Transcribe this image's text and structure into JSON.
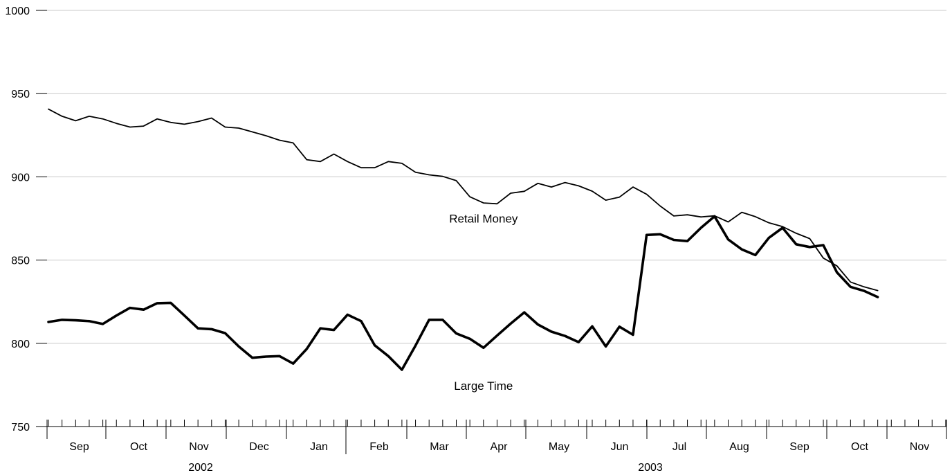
{
  "chart_data": {
    "type": "line",
    "title": "",
    "xlabel": "",
    "ylabel": "",
    "ylim": [
      750,
      1000
    ],
    "yticks": [
      "750",
      "800",
      "850",
      "900",
      "950",
      "1000"
    ],
    "grid": true,
    "x_start": "2002-08-19",
    "x_step_days": 7,
    "months": [
      {
        "label": "Sep",
        "year": 2002
      },
      {
        "label": "Oct",
        "year": 2002
      },
      {
        "label": "Nov",
        "year": 2002
      },
      {
        "label": "Dec",
        "year": 2002
      },
      {
        "label": "Jan",
        "year": 2003
      },
      {
        "label": "Feb",
        "year": 2003
      },
      {
        "label": "Mar",
        "year": 2003
      },
      {
        "label": "Apr",
        "year": 2003
      },
      {
        "label": "May",
        "year": 2003
      },
      {
        "label": "Jun",
        "year": 2003
      },
      {
        "label": "Jul",
        "year": 2003
      },
      {
        "label": "Aug",
        "year": 2003
      },
      {
        "label": "Sep",
        "year": 2003
      },
      {
        "label": "Oct",
        "year": 2003
      },
      {
        "label": "Nov",
        "year": 2003
      }
    ],
    "years": [
      {
        "label": "2002"
      },
      {
        "label": "2003"
      }
    ],
    "series": [
      {
        "name": "Retail Money",
        "values": [
          940.7,
          936.4,
          933.7,
          936.4,
          934.8,
          932.1,
          929.9,
          930.5,
          934.8,
          932.7,
          931.6,
          933.2,
          935.3,
          929.9,
          929.3,
          927.0,
          924.7,
          922.0,
          920.4,
          910.3,
          909.2,
          913.7,
          909.2,
          905.5,
          905.5,
          909.2,
          908.1,
          902.8,
          901.2,
          900.3,
          897.7,
          888.0,
          884.3,
          883.8,
          890.2,
          891.3,
          896.1,
          893.9,
          896.6,
          894.6,
          891.4,
          886.0,
          887.8,
          893.9,
          889.5,
          882.5,
          876.5,
          877.2,
          875.9,
          876.6,
          872.9,
          878.7,
          876.1,
          872.4,
          870.1,
          866.1,
          862.9,
          851.2,
          846.5,
          836.8,
          833.9,
          831.7
        ],
        "label_anchor": {
          "x_index": 32,
          "y": 872.6
        }
      },
      {
        "name": "Large Time",
        "values": [
          812.8,
          814.1,
          813.8,
          813.3,
          811.6,
          816.7,
          821.3,
          820.2,
          824.1,
          824.3,
          816.7,
          809.0,
          808.5,
          806.1,
          798.1,
          791.3,
          792.0,
          792.3,
          787.8,
          796.6,
          809.0,
          808.0,
          817.2,
          813.3,
          798.8,
          792.3,
          784.1,
          798.6,
          814.1,
          814.1,
          805.9,
          802.7,
          797.3,
          804.6,
          811.8,
          818.6,
          811.3,
          807.0,
          804.4,
          800.7,
          810.2,
          798.1,
          810.0,
          805.1,
          865.1,
          865.5,
          862.1,
          861.4,
          869.4,
          876.3,
          862.4,
          856.4,
          853.0,
          863.4,
          869.4,
          859.5,
          857.8,
          859.0,
          842.6,
          833.9,
          831.5,
          827.8
        ],
        "label_anchor": {
          "x_index": 32,
          "y": 772.0
        }
      }
    ]
  }
}
